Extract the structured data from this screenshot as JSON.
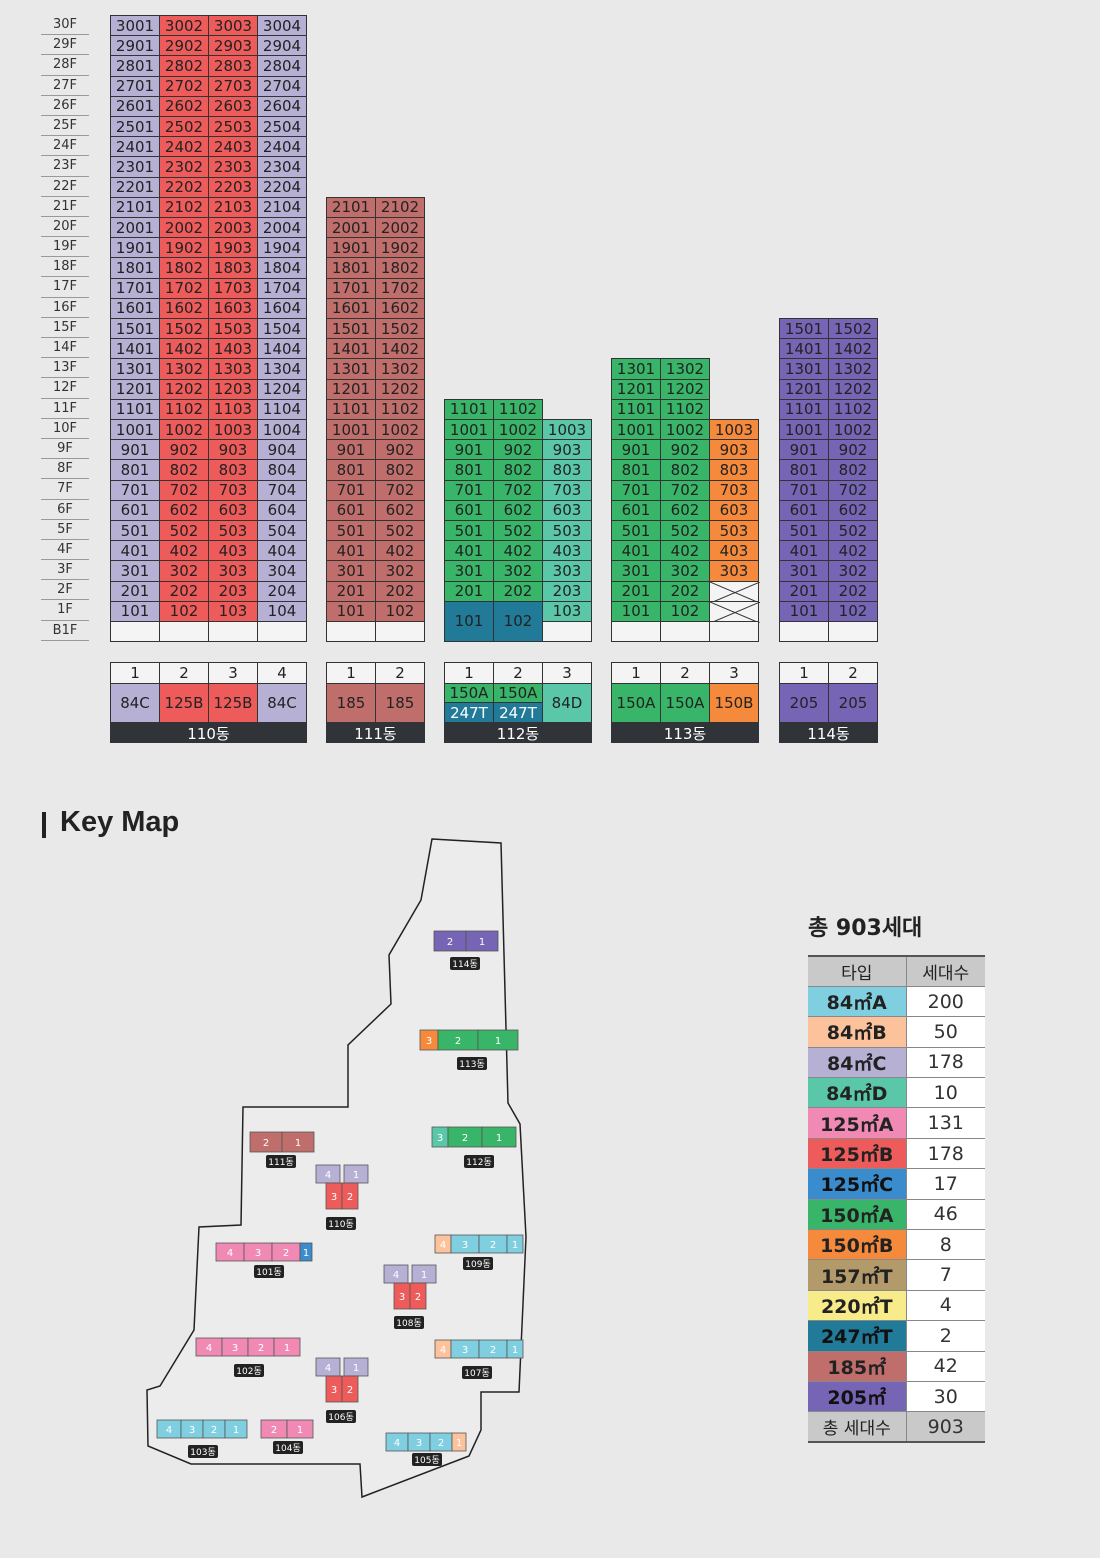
{
  "floors": [
    "30F",
    "29F",
    "28F",
    "27F",
    "26F",
    "25F",
    "24F",
    "23F",
    "22F",
    "21F",
    "20F",
    "19F",
    "18F",
    "17F",
    "16F",
    "15F",
    "14F",
    "13F",
    "12F",
    "11F",
    "10F",
    "9F",
    "8F",
    "7F",
    "6F",
    "5F",
    "4F",
    "3F",
    "2F",
    "1F",
    "B1F"
  ],
  "colors": {
    "84C": "#b5b0d4",
    "125B": "#ee5b5b",
    "185": "#bf6e6c",
    "150A": "#38b568",
    "84D": "#5ac8a8",
    "247T": "#207a98",
    "150B": "#f58a3c",
    "205": "#7565b4",
    "empty": "#f4f4f4"
  },
  "buildings": [
    {
      "name": "110동",
      "lines": [
        "1",
        "2",
        "3",
        "4"
      ],
      "types": [
        "84C",
        "125B",
        "125B",
        "84C"
      ],
      "top_floor": 30,
      "line_floors": [
        30,
        30,
        30,
        30
      ],
      "line_types": [
        "84C",
        "125B",
        "125B",
        "84C"
      ],
      "first_floor": [
        1,
        1,
        1,
        1
      ]
    },
    {
      "name": "111동",
      "lines": [
        "1",
        "2"
      ],
      "types": [
        "185",
        "185"
      ],
      "top_floor": 21,
      "line_floors": [
        21,
        21
      ],
      "line_types": [
        "185",
        "185"
      ],
      "first_floor": [
        1,
        1
      ]
    },
    {
      "name": "112동",
      "lines": [
        "1",
        "2",
        "3"
      ],
      "types": [
        "150A",
        "150A",
        "84D"
      ],
      "types_low": [
        "247T",
        "247T",
        ""
      ],
      "top_floor": 11,
      "line_floors": [
        11,
        11,
        10
      ],
      "line_types": [
        "150A",
        "150A",
        "84D"
      ],
      "first_floor": [
        1,
        1,
        1
      ]
    },
    {
      "name": "113동",
      "lines": [
        "1",
        "2",
        "3"
      ],
      "types": [
        "150A",
        "150A",
        "150B"
      ],
      "top_floor": 13,
      "line_floors": [
        13,
        13,
        10
      ],
      "line_types": [
        "150A",
        "150A",
        "150B"
      ],
      "first_floor": [
        1,
        1,
        3
      ]
    },
    {
      "name": "114동",
      "lines": [
        "1",
        "2"
      ],
      "types": [
        "205",
        "205"
      ],
      "top_floor": 15,
      "line_floors": [
        15,
        15
      ],
      "line_types": [
        "205",
        "205"
      ],
      "first_floor": [
        1,
        1
      ]
    }
  ],
  "special": {
    "b112_duplex": [
      "101",
      "102"
    ]
  },
  "keymap": {
    "title": "Key Map",
    "buildings": [
      "114동",
      "113동",
      "111동",
      "112동",
      "110동",
      "101동",
      "109동",
      "108동",
      "102동",
      "107동",
      "106동",
      "103동",
      "104동",
      "105동"
    ]
  },
  "summary": {
    "title": "총 903세대",
    "header_type": "타입",
    "header_count": "세대수",
    "rows": [
      {
        "type": "84㎡A",
        "count": "200",
        "color": "#7fcfe0"
      },
      {
        "type": "84㎡B",
        "count": "50",
        "color": "#fcc29b"
      },
      {
        "type": "84㎡C",
        "count": "178",
        "color": "#b5b0d4"
      },
      {
        "type": "84㎡D",
        "count": "10",
        "color": "#5ac8a8"
      },
      {
        "type": "125㎡A",
        "count": "131",
        "color": "#f08ab4"
      },
      {
        "type": "125㎡B",
        "count": "178",
        "color": "#ee5b5b"
      },
      {
        "type": "125㎡C",
        "count": "17",
        "color": "#3a8ccc"
      },
      {
        "type": "150㎡A",
        "count": "46",
        "color": "#38b568"
      },
      {
        "type": "150㎡B",
        "count": "8",
        "color": "#f58a3c"
      },
      {
        "type": "157㎡T",
        "count": "7",
        "color": "#b39a6a"
      },
      {
        "type": "220㎡T",
        "count": "4",
        "color": "#f8ec8a"
      },
      {
        "type": "247㎡T",
        "count": "2",
        "color": "#207a98"
      },
      {
        "type": "185㎡",
        "count": "42",
        "color": "#bf6e6c"
      },
      {
        "type": "205㎡",
        "count": "30",
        "color": "#7565b4"
      }
    ],
    "total_label": "총 세대수",
    "total_count": "903"
  }
}
